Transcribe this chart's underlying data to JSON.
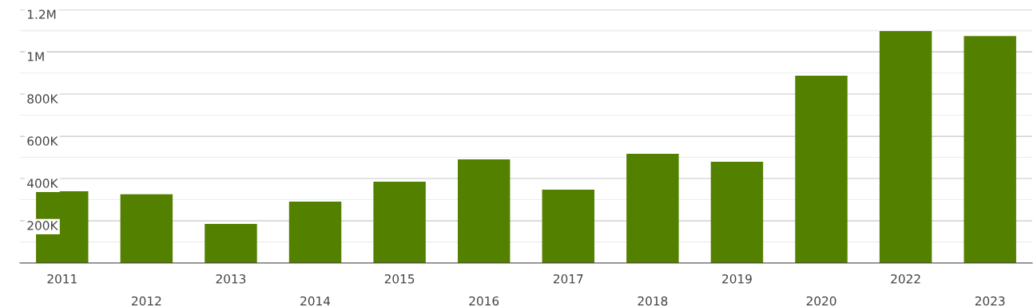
{
  "chart_data": {
    "type": "bar",
    "categories": [
      "2011",
      "2012",
      "2013",
      "2014",
      "2015",
      "2016",
      "2017",
      "2018",
      "2019",
      "2020",
      "2022",
      "2023"
    ],
    "values": [
      340000,
      325000,
      185000,
      291000,
      385000,
      491000,
      347000,
      517000,
      479000,
      887000,
      1098000,
      1075000
    ],
    "color": "#548000",
    "ylim": [
      0,
      1200000
    ],
    "yticks": [
      {
        "value": 100000,
        "label": null
      },
      {
        "value": 200000,
        "label": "200K"
      },
      {
        "value": 300000,
        "label": null
      },
      {
        "value": 400000,
        "label": "400K"
      },
      {
        "value": 500000,
        "label": null
      },
      {
        "value": 600000,
        "label": "600K"
      },
      {
        "value": 700000,
        "label": null
      },
      {
        "value": 800000,
        "label": "800K"
      },
      {
        "value": 900000,
        "label": null
      },
      {
        "value": 1000000,
        "label": "1M"
      },
      {
        "value": 1100000,
        "label": null
      },
      {
        "value": 1200000,
        "label": "1.2M"
      }
    ],
    "grid": "y"
  }
}
